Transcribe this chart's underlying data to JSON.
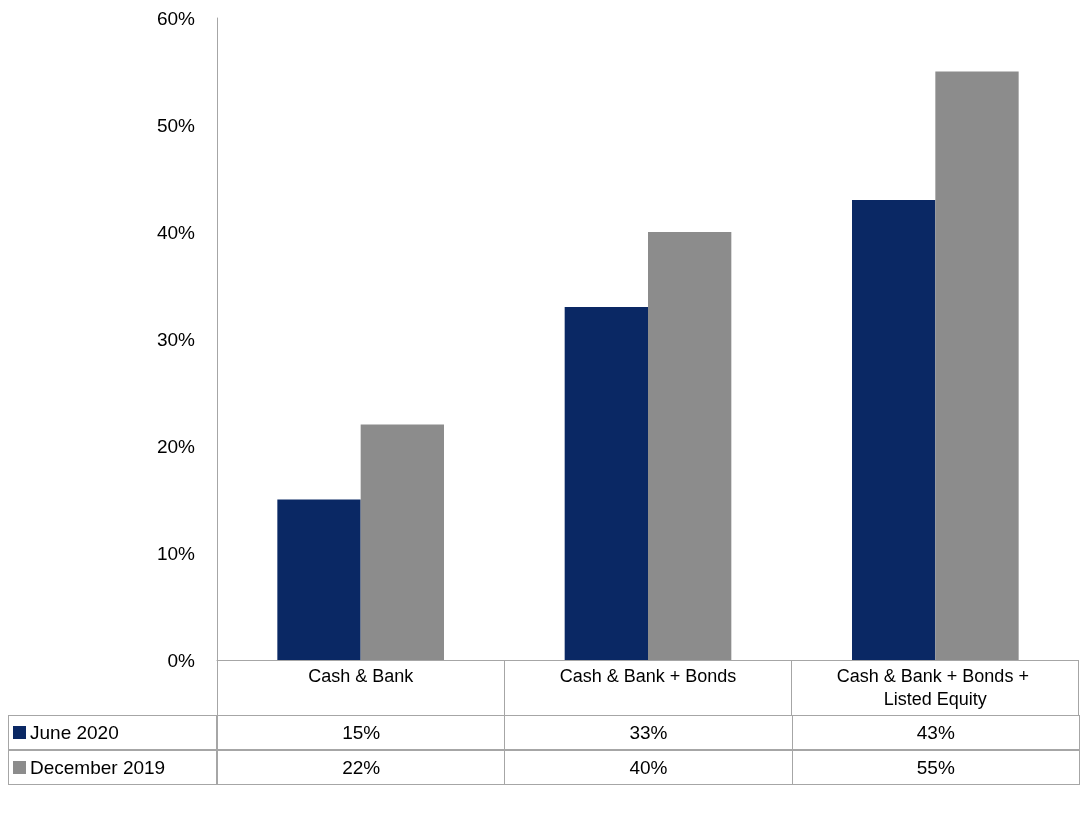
{
  "chart_data": {
    "type": "bar",
    "categories": [
      "Cash & Bank",
      "Cash & Bank + Bonds",
      "Cash & Bank + Bonds + Listed Equity"
    ],
    "series": [
      {
        "name": "June 2020",
        "color": "#0a2864",
        "values": [
          15,
          33,
          43
        ],
        "value_labels": [
          "15%",
          "33%",
          "43%"
        ]
      },
      {
        "name": "December 2019",
        "color": "#8c8c8c",
        "values": [
          22,
          40,
          55
        ],
        "value_labels": [
          "22%",
          "40%",
          "55%"
        ]
      }
    ],
    "ylim": [
      0,
      60
    ],
    "yticks": [
      {
        "value": 0,
        "label": "0%"
      },
      {
        "value": 10,
        "label": "10%"
      },
      {
        "value": 20,
        "label": "20%"
      },
      {
        "value": 30,
        "label": "30%"
      },
      {
        "value": 40,
        "label": "40%"
      },
      {
        "value": 50,
        "label": "50%"
      },
      {
        "value": 60,
        "label": "60%"
      }
    ],
    "grid": false,
    "legend": "bottom"
  }
}
